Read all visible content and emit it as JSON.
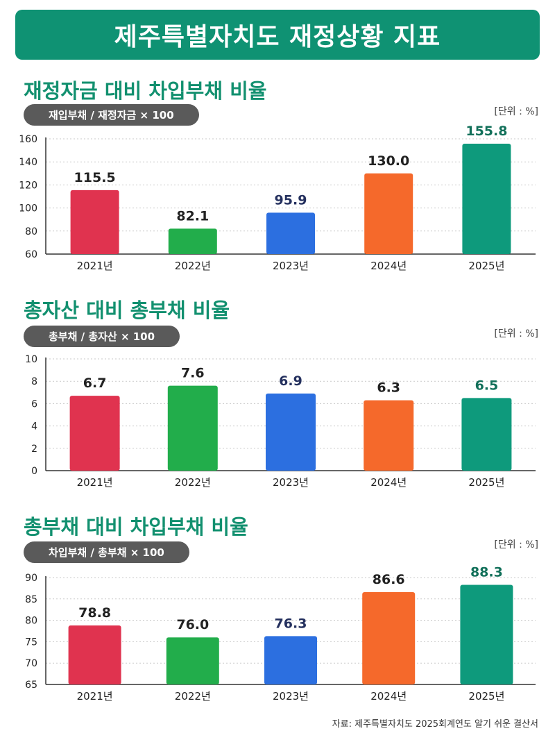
{
  "header": {
    "title": "제주특별자치도 재정상황 지표"
  },
  "source": "자료: 제주특별자치도 2025회계연도 알기 쉬운 결산서",
  "colors": {
    "brand": "#0f9273",
    "title": "#12906f",
    "pill": "#5a5a5a",
    "bars": [
      "#e0334f",
      "#22ad4b",
      "#2c6fe0",
      "#f5692b",
      "#0e9a7c"
    ],
    "value_labels": [
      "#222222",
      "#222222",
      "#24305e",
      "#222222",
      "#12705a"
    ]
  },
  "chart_data": [
    {
      "type": "bar",
      "title": "재정자금 대비 차입부채 비율",
      "formula": "재입부채 / 재정자금 × 100",
      "unit": "[단위 : %]",
      "categories": [
        "2021년",
        "2022년",
        "2023년",
        "2024년",
        "2025년"
      ],
      "values": [
        115.5,
        82.1,
        95.9,
        130.0,
        155.8
      ],
      "value_labels": [
        "115.5",
        "82.1",
        "95.9",
        "130.0",
        "155.8"
      ],
      "ylim": [
        60,
        160
      ],
      "yticks": [
        60,
        80,
        100,
        120,
        140,
        160
      ],
      "grid": true
    },
    {
      "type": "bar",
      "title": "총자산 대비 총부채 비율",
      "formula": "총부채 / 총자산 × 100",
      "unit": "[단위 : %]",
      "categories": [
        "2021년",
        "2022년",
        "2023년",
        "2024년",
        "2025년"
      ],
      "values": [
        6.7,
        7.6,
        6.9,
        6.3,
        6.5
      ],
      "value_labels": [
        "6.7",
        "7.6",
        "6.9",
        "6.3",
        "6.5"
      ],
      "ylim": [
        0,
        10
      ],
      "yticks": [
        0,
        2,
        4,
        6,
        8,
        10
      ],
      "grid": true
    },
    {
      "type": "bar",
      "title": "총부채 대비 차입부채 비율",
      "formula": "차입부채 / 총부채 × 100",
      "unit": "[단위 : %]",
      "categories": [
        "2021년",
        "2022년",
        "2023년",
        "2024년",
        "2025년"
      ],
      "values": [
        78.8,
        76.0,
        76.3,
        86.6,
        88.3
      ],
      "value_labels": [
        "78.8",
        "76.0",
        "76.3",
        "86.6",
        "88.3"
      ],
      "ylim": [
        65,
        90
      ],
      "yticks": [
        65,
        70,
        75,
        80,
        85,
        90
      ],
      "grid": true
    }
  ]
}
